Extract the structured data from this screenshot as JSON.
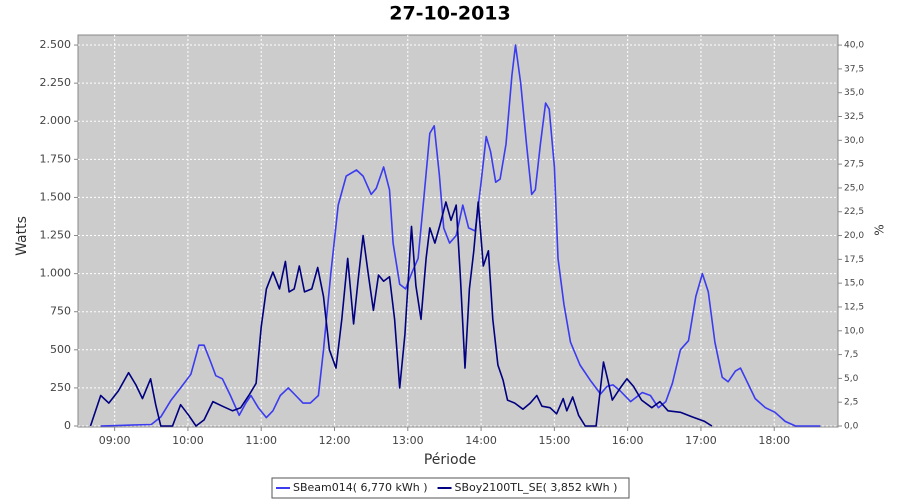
{
  "chart_data": {
    "type": "line",
    "title": "27-10-2013",
    "xlabel": "Période",
    "ylabel": "Watts",
    "y2label": "%",
    "xlim": [
      8.5,
      18.87
    ],
    "xticks": [
      {
        "value": 9,
        "label": "09:00"
      },
      {
        "value": 10,
        "label": "10:00"
      },
      {
        "value": 11,
        "label": "11:00"
      },
      {
        "value": 12,
        "label": "12:00"
      },
      {
        "value": 13,
        "label": "13:00"
      },
      {
        "value": 14,
        "label": "14:00"
      },
      {
        "value": 15,
        "label": "15:00"
      },
      {
        "value": 16,
        "label": "16:00"
      },
      {
        "value": 17,
        "label": "17:00"
      },
      {
        "value": 18,
        "label": "18:00"
      }
    ],
    "ylim": [
      0,
      2566
    ],
    "yticks": [
      0,
      250,
      500,
      750,
      {
        "value": 1000,
        "label": "1.000"
      },
      {
        "value": 1250,
        "label": "1.250"
      },
      {
        "value": 1500,
        "label": "1.500"
      },
      {
        "value": 1750,
        "label": "1.750"
      },
      {
        "value": 2000,
        "label": "2.000"
      },
      {
        "value": 2250,
        "label": "2.250"
      },
      {
        "value": 2500,
        "label": "2.500"
      }
    ],
    "y2lim": [
      0,
      41.06
    ],
    "y2ticks": [
      {
        "value": 0,
        "label": "0,0"
      },
      {
        "value": 2.5,
        "label": "2,5"
      },
      {
        "value": 5,
        "label": "5,0"
      },
      {
        "value": 7.5,
        "label": "7,5"
      },
      {
        "value": 10,
        "label": "10,0"
      },
      {
        "value": 12.5,
        "label": "12,5"
      },
      {
        "value": 15,
        "label": "15,0"
      },
      {
        "value": 17.5,
        "label": "17,5"
      },
      {
        "value": 20,
        "label": "20,0"
      },
      {
        "value": 22.5,
        "label": "22,5"
      },
      {
        "value": 25,
        "label": "25,0"
      },
      {
        "value": 27.5,
        "label": "27,5"
      },
      {
        "value": 30,
        "label": "30,0"
      },
      {
        "value": 32.5,
        "label": "32,5"
      },
      {
        "value": 35,
        "label": "35,0"
      },
      {
        "value": 37.5,
        "label": "37,5"
      },
      {
        "value": 40,
        "label": "40,0"
      }
    ],
    "grid": true,
    "legend": "bottom",
    "series": [
      {
        "name": "SBeam014( 6,770 kWh )",
        "color": "#3b3bf0",
        "x": [
          8.81,
          9.5,
          9.63,
          9.77,
          9.9,
          10.04,
          10.15,
          10.22,
          10.31,
          10.38,
          10.47,
          10.58,
          10.7,
          10.79,
          10.86,
          10.96,
          11.07,
          11.16,
          11.26,
          11.37,
          11.47,
          11.57,
          11.67,
          11.78,
          11.85,
          11.95,
          12.05,
          12.16,
          12.3,
          12.39,
          12.5,
          12.57,
          12.67,
          12.75,
          12.8,
          12.89,
          12.97,
          13.05,
          13.14,
          13.22,
          13.3,
          13.36,
          13.43,
          13.49,
          13.57,
          13.66,
          13.75,
          13.83,
          13.92,
          14.0,
          14.07,
          14.13,
          14.2,
          14.26,
          14.34,
          14.42,
          14.47,
          14.54,
          14.62,
          14.69,
          14.74,
          14.81,
          14.88,
          14.93,
          15.0,
          15.05,
          15.13,
          15.22,
          15.35,
          15.49,
          15.63,
          15.72,
          15.8,
          15.9,
          16.04,
          16.2,
          16.31,
          16.42,
          16.52,
          16.61,
          16.72,
          16.83,
          16.93,
          17.02,
          17.1,
          17.19,
          17.29,
          17.37,
          17.47,
          17.54,
          17.62,
          17.74,
          17.88,
          18.01,
          18.15,
          18.29,
          18.63
        ],
        "values": [
          0,
          10,
          60,
          170,
          250,
          340,
          530,
          530,
          420,
          330,
          310,
          200,
          70,
          150,
          200,
          120,
          55,
          100,
          200,
          250,
          200,
          150,
          150,
          200,
          500,
          1000,
          1450,
          1640,
          1680,
          1640,
          1520,
          1560,
          1700,
          1550,
          1200,
          930,
          900,
          1000,
          1100,
          1500,
          1920,
          1970,
          1650,
          1300,
          1200,
          1250,
          1450,
          1300,
          1280,
          1600,
          1900,
          1800,
          1600,
          1620,
          1850,
          2300,
          2500,
          2250,
          1850,
          1520,
          1550,
          1850,
          2120,
          2080,
          1700,
          1100,
          800,
          550,
          400,
          300,
          210,
          260,
          270,
          230,
          160,
          220,
          200,
          120,
          160,
          280,
          500,
          560,
          850,
          1000,
          880,
          550,
          320,
          290,
          360,
          380,
          300,
          180,
          120,
          90,
          30,
          0,
          0
        ]
      },
      {
        "name": "SBoy2100TL_SE( 3,852 kWh )",
        "color": "#000080",
        "x": [
          8.67,
          8.81,
          8.92,
          9.05,
          9.19,
          9.29,
          9.38,
          9.49,
          9.56,
          9.63,
          9.79,
          9.9,
          10.01,
          10.11,
          10.22,
          10.34,
          10.47,
          10.61,
          10.72,
          10.83,
          10.93,
          11.0,
          11.07,
          11.16,
          11.25,
          11.33,
          11.38,
          11.45,
          11.52,
          11.59,
          11.69,
          11.77,
          11.85,
          11.93,
          12.02,
          12.1,
          12.18,
          12.26,
          12.32,
          12.39,
          12.46,
          12.53,
          12.6,
          12.67,
          12.75,
          12.82,
          12.89,
          12.96,
          13.05,
          13.11,
          13.18,
          13.25,
          13.3,
          13.37,
          13.44,
          13.52,
          13.59,
          13.66,
          13.72,
          13.78,
          13.84,
          13.9,
          13.96,
          14.03,
          14.1,
          14.16,
          14.23,
          14.3,
          14.36,
          14.46,
          14.57,
          14.67,
          14.76,
          14.83,
          14.94,
          15.03,
          15.12,
          15.17,
          15.25,
          15.33,
          15.42,
          15.57,
          15.67,
          15.73,
          15.79,
          15.9,
          15.99,
          16.08,
          16.19,
          16.33,
          16.44,
          16.55,
          16.72,
          16.88,
          17.05,
          17.15
        ],
        "values": [
          0,
          200,
          150,
          230,
          350,
          270,
          180,
          310,
          140,
          0,
          0,
          140,
          70,
          0,
          40,
          160,
          130,
          100,
          120,
          200,
          280,
          650,
          900,
          1010,
          900,
          1080,
          880,
          900,
          1050,
          880,
          900,
          1040,
          850,
          500,
          380,
          700,
          1100,
          670,
          950,
          1250,
          1000,
          760,
          990,
          950,
          980,
          700,
          250,
          600,
          1310,
          920,
          700,
          1100,
          1300,
          1200,
          1320,
          1470,
          1350,
          1450,
          950,
          380,
          900,
          1150,
          1470,
          1050,
          1150,
          700,
          400,
          300,
          170,
          150,
          110,
          150,
          200,
          130,
          120,
          80,
          180,
          100,
          190,
          70,
          0,
          0,
          420,
          300,
          170,
          250,
          310,
          260,
          170,
          120,
          160,
          100,
          90,
          60,
          30,
          0
        ]
      }
    ]
  }
}
